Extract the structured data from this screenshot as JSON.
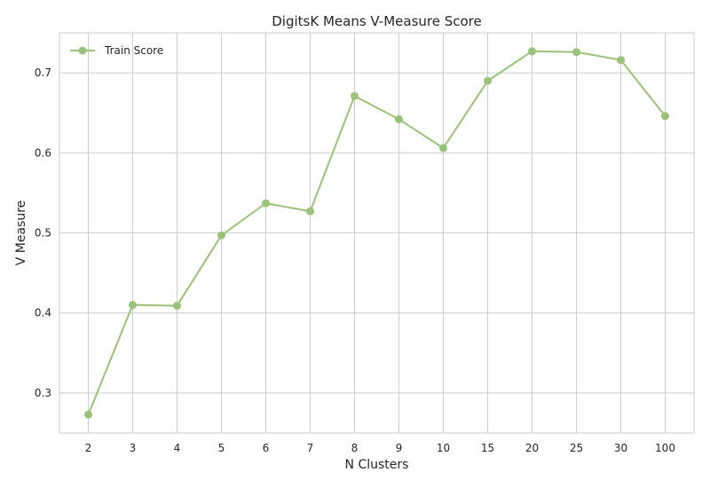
{
  "chart_data": {
    "type": "line",
    "title": "DigitsK Means V-Measure Score",
    "xlabel": "N Clusters",
    "ylabel": "V Measure",
    "categories": [
      "2",
      "3",
      "4",
      "5",
      "6",
      "7",
      "8",
      "9",
      "10",
      "15",
      "20",
      "25",
      "30",
      "100"
    ],
    "series": [
      {
        "name": "Train Score",
        "color": "#9bc27a",
        "values": [
          0.273,
          0.41,
          0.409,
          0.497,
          0.537,
          0.527,
          0.671,
          0.642,
          0.606,
          0.69,
          0.727,
          0.726,
          0.716,
          0.646
        ]
      }
    ],
    "yticks": [
      0.3,
      0.4,
      0.5,
      0.6,
      0.7
    ],
    "ytick_labels": [
      "0.3",
      "0.4",
      "0.5",
      "0.6",
      "0.7"
    ],
    "ylim": [
      0.25,
      0.75
    ],
    "grid": true,
    "legend_position": "top-left"
  }
}
